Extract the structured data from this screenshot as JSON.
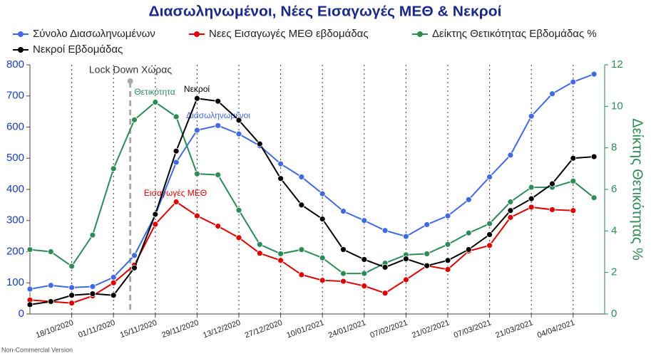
{
  "chart_data": {
    "type": "line",
    "title": "Διασωληνωμένοι, Νέες Εισαγωγές ΜΕΘ & Νεκροί",
    "y2_label": "Δείκτης Θετικότητας %",
    "annotations": [
      "Lock Down Χώρας",
      "Θετικότητα",
      "Νεκροί",
      "Διασωληνωμένοι",
      "Εισαγωγές ΜΕΘ"
    ],
    "footnote": "Non-Commercial Version",
    "categories": [
      null,
      null,
      "18/10/2020",
      null,
      "01/11/2020",
      null,
      "15/11/2020",
      null,
      "29/11/2020",
      null,
      "13/12/2020",
      null,
      "27/12/2020",
      null,
      "10/01/2021",
      null,
      "24/01/2021",
      null,
      "07/02/2021",
      null,
      "21/02/2021",
      null,
      "07/03/2021",
      null,
      "21/03/2021",
      null,
      "04/04/2021",
      null
    ],
    "series": [
      {
        "name": "Σύνολο Διασωληνωμένων",
        "color": "#4169e1",
        "values": [
          80,
          92,
          85,
          88,
          118,
          188,
          318,
          487,
          590,
          605,
          578,
          540,
          482,
          440,
          386,
          330,
          300,
          268,
          249,
          287,
          315,
          367,
          440,
          510,
          635,
          707,
          745,
          770
        ]
      },
      {
        "name": "Νεες Εισαγωγές ΜΕΘ εβδομάδας",
        "color": "#e00000",
        "values": [
          45,
          40,
          35,
          58,
          100,
          157,
          288,
          360,
          315,
          282,
          245,
          195,
          172,
          126,
          108,
          105,
          90,
          67,
          110,
          155,
          143,
          202,
          220,
          310,
          343,
          335,
          332,
          null
        ]
      },
      {
        "name": "Δείκτης Θετικότητας Εβδομάδας %",
        "color": "#2e8b57",
        "axis": "y2",
        "values": [
          3.1,
          3.0,
          2.3,
          3.8,
          7.0,
          9.35,
          10.2,
          9.5,
          6.75,
          6.7,
          5.0,
          3.35,
          2.9,
          3.1,
          2.7,
          1.95,
          1.95,
          2.45,
          2.85,
          2.9,
          3.35,
          3.9,
          4.35,
          5.4,
          6.1,
          6.1,
          6.4,
          5.6
        ]
      },
      {
        "name": "Νεκροί Εβδομάδας",
        "color": "#000000",
        "values": [
          30,
          40,
          60,
          65,
          60,
          148,
          320,
          523,
          692,
          683,
          622,
          546,
          435,
          350,
          305,
          207,
          175,
          150,
          177,
          155,
          172,
          207,
          255,
          332,
          370,
          418,
          500,
          505
        ]
      }
    ],
    "ylim": [
      0,
      800
    ],
    "yticks": [
      0,
      100,
      200,
      300,
      400,
      500,
      600,
      700,
      800
    ],
    "y2lim": [
      0,
      12
    ],
    "y2ticks": [
      0,
      2,
      4,
      6,
      8,
      10,
      12
    ],
    "grid": true
  }
}
